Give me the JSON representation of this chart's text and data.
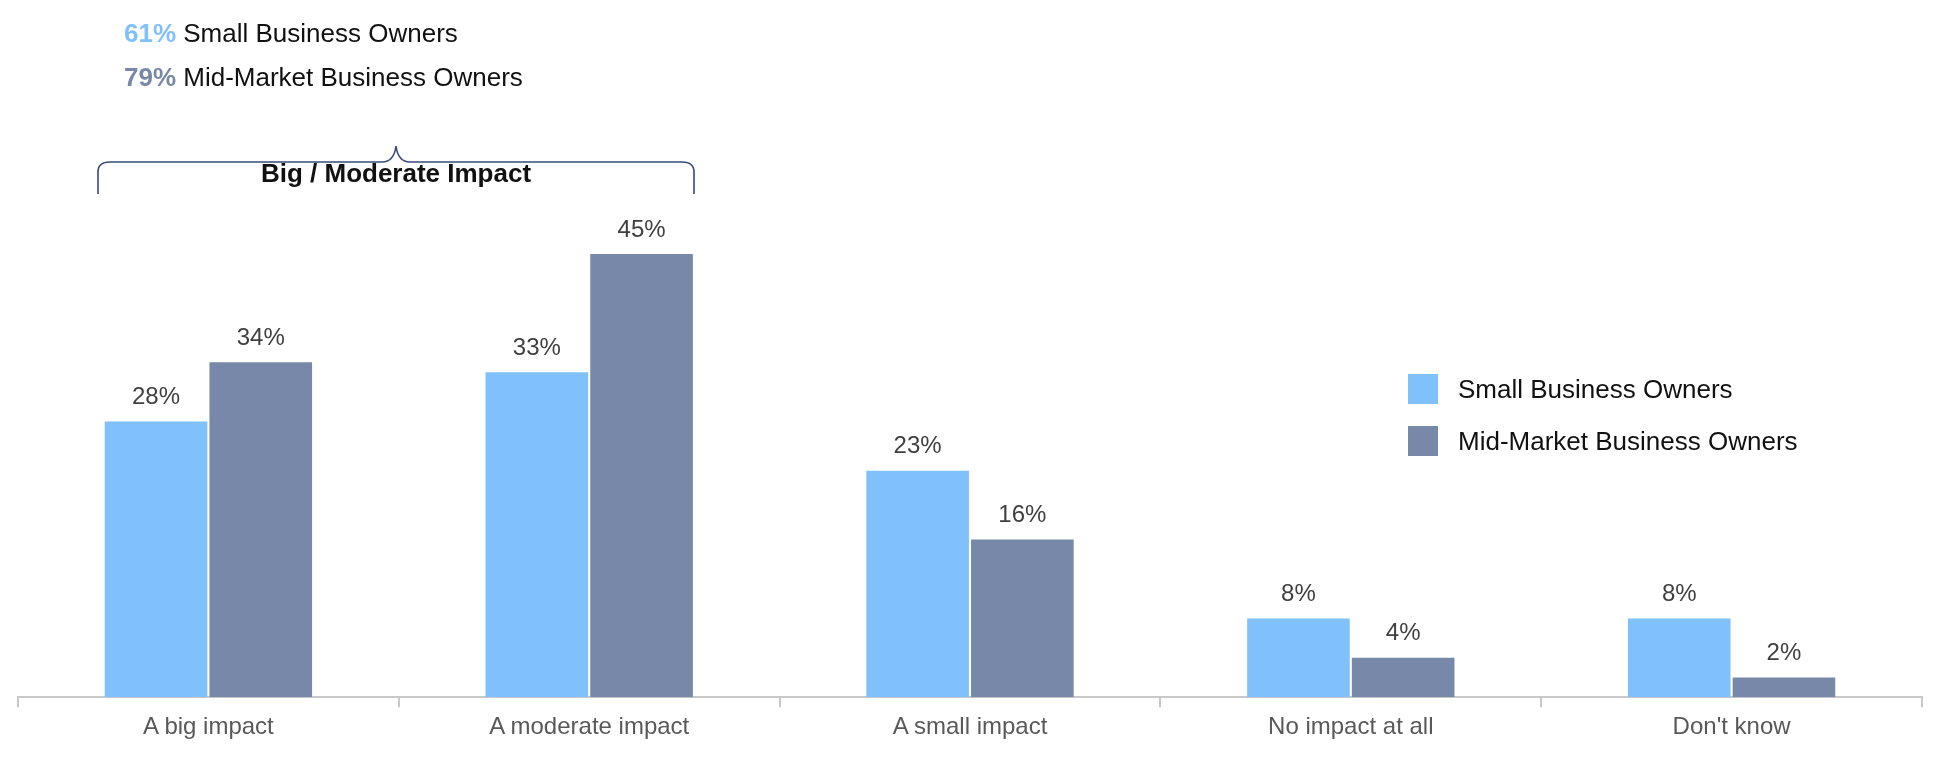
{
  "chart_data": {
    "type": "bar",
    "categories": [
      "A big impact",
      "A moderate impact",
      "A small impact",
      "No impact at all",
      "Don't know"
    ],
    "series": [
      {
        "name": "Small Business Owners",
        "color": "#80c1fb",
        "values": [
          28,
          33,
          23,
          8,
          8
        ],
        "value_labels": [
          "28%",
          "33%",
          "23%",
          "8%",
          "8%"
        ]
      },
      {
        "name": "Mid-Market Business Owners",
        "color": "#7788a8",
        "values": [
          34,
          45,
          16,
          4,
          2
        ],
        "value_labels": [
          "34%",
          "45%",
          "16%",
          "4%",
          "2%"
        ]
      }
    ],
    "legend": "right",
    "annotations": [
      "61% Small Business Owners",
      "79% Mid-Market Business Owners",
      "Big / Moderate Impact"
    ]
  }
}
